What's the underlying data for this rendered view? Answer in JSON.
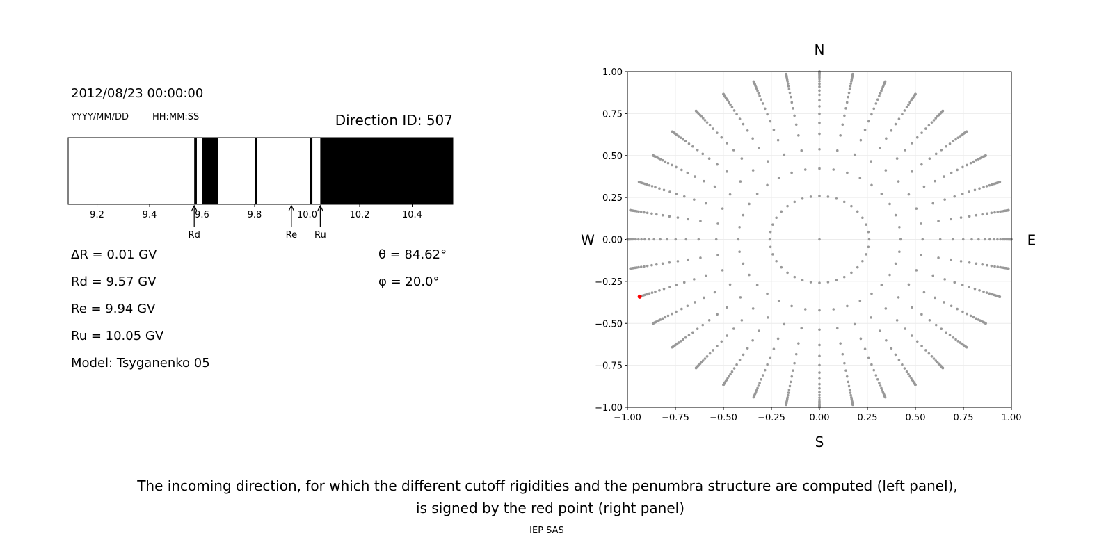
{
  "left_panel": {
    "datetime": "2012/08/23 00:00:00",
    "date_format": "YYYY/MM/DD",
    "time_format": "HH:MM:SS",
    "direction_id": "Direction ID: 507",
    "params": [
      {
        "label": "ΔR = 0.01 GV"
      },
      {
        "label": "Rd = 9.57 GV"
      },
      {
        "label": "Re = 9.94 GV"
      },
      {
        "label": "Ru = 10.05 GV"
      },
      {
        "label": "Model: Tsyganenko 05"
      }
    ],
    "theta": "θ = 84.62°",
    "phi": "φ = 20.0°"
  },
  "chart_data": [
    {
      "type": "penumbra-bar",
      "xlim": [
        9.09,
        10.555
      ],
      "xticks": [
        "9.2",
        "9.4",
        "9.6",
        "9.8",
        "10.0",
        "10.2",
        "10.4"
      ],
      "forbidden_intervals_GV": [
        [
          9.57,
          9.58
        ],
        [
          9.6,
          9.66
        ],
        [
          9.8,
          9.81
        ],
        [
          10.01,
          10.02
        ],
        [
          10.05,
          10.555
        ]
      ],
      "markers": [
        {
          "label": "Rd",
          "value": 9.57
        },
        {
          "label": "Re",
          "value": 9.94
        },
        {
          "label": "Ru",
          "value": 10.05
        }
      ],
      "colors": {
        "forbidden": "#000000",
        "allowed": "#ffffff"
      }
    },
    {
      "type": "scatter",
      "xlim": [
        -1,
        1
      ],
      "ylim": [
        -1,
        1
      ],
      "grid": true,
      "xticks": [
        "−1.00",
        "−0.75",
        "−0.50",
        "−0.25",
        "0.00",
        "0.25",
        "0.50",
        "0.75",
        "1.00"
      ],
      "yticks": [
        "−1.00",
        "−0.75",
        "−0.50",
        "−0.25",
        "0.00",
        "0.25",
        "0.50",
        "0.75",
        "1.00"
      ],
      "compass": {
        "north": "N",
        "south": "S",
        "west": "W",
        "east": "E"
      },
      "direction_grid": {
        "azimuth_step_deg": 10,
        "zenith_deg": [
          15,
          25,
          32.5,
          39,
          44,
          48.5,
          52.5,
          56,
          59.5,
          62.5,
          65.5,
          68,
          70.5,
          73,
          75,
          77,
          79,
          80.5,
          82,
          83.5,
          85,
          86.5,
          88,
          89,
          90
        ]
      },
      "selected_point": {
        "x": -0.936,
        "y": -0.341
      },
      "colors": {
        "grid_points": "#999999",
        "selected": "#ff0000"
      }
    }
  ],
  "caption": {
    "line1": "The incoming direction, for which the different cutoff rigidities and the penumbra structure are computed (left panel),",
    "line2": "is signed by the red point (right panel)",
    "credit": "IEP SAS"
  }
}
